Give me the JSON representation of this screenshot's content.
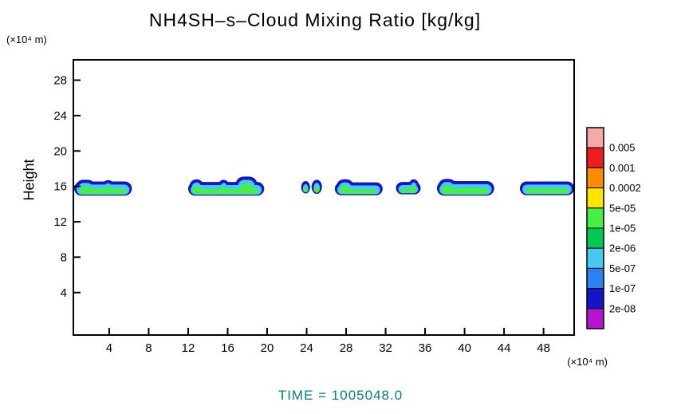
{
  "title": "NH4SH–s–Cloud Mixing Ratio [kg/kg]",
  "time_label": "TIME  =  1005048.0",
  "time_color": "#008080",
  "chart_data": {
    "type": "heatmap",
    "title": "NH4SH–s–Cloud Mixing Ratio [kg/kg]",
    "x_axis": {
      "units": "(×10⁴ m)",
      "ticks": [
        4,
        8,
        12,
        16,
        20,
        24,
        28,
        32,
        36,
        40,
        44,
        48
      ],
      "range": [
        0.37,
        51.1
      ]
    },
    "y_axis": {
      "label": "Height",
      "units": "(×10⁴ m)",
      "ticks": [
        4,
        8,
        12,
        16,
        20,
        24,
        28
      ],
      "range": [
        -0.8,
        30.3
      ]
    },
    "colorbar": {
      "labels": [
        "0.005",
        "0.001",
        "0.0002",
        "5e-05",
        "1e-05",
        "2e-06",
        "5e-07",
        "1e-07",
        "2e-08"
      ],
      "colors": [
        "#f7a8a8",
        "#ee1c1c",
        "#ff8c00",
        "#ffe400",
        "#46ef46",
        "#00c850",
        "#46c8f0",
        "#2882f0",
        "#1414c8",
        "#b414d2"
      ]
    },
    "clouds": {
      "description": "Cloud band near height 15-17 (x10^4 m), layered mixing-ratio contours",
      "layers": [
        {
          "name": "outer-low-ratio",
          "color": "#1414c8",
          "side": 0.0,
          "top": 0.0,
          "bottom": 0.0
        },
        {
          "name": "mid-ratio",
          "color": "#46c8f0",
          "side": 0.25,
          "top": 0.35,
          "bottom": 0.12
        },
        {
          "name": "core-high-ratio",
          "color": "#46ef46",
          "side": 0.6,
          "top": 0.8,
          "bottom": 0.18
        }
      ],
      "segments": [
        {
          "blobs": [
            [
              0.45,
              6.3,
              16.55,
              14.95
            ],
            [
              0.6,
              2.6,
              16.75,
              15.0
            ],
            [
              3.2,
              4.6,
              16.7,
              15.0
            ]
          ]
        },
        {
          "blobs": [
            [
              12.0,
              19.7,
              16.5,
              14.95
            ],
            [
              12.1,
              13.6,
              16.8,
              15.0
            ],
            [
              15.0,
              16.2,
              16.75,
              15.0
            ],
            [
              16.8,
              19.0,
              17.1,
              15.0
            ]
          ]
        },
        {
          "blobs": [
            [
              23.45,
              24.35,
              16.6,
              15.2
            ],
            [
              24.5,
              25.55,
              16.75,
              15.15
            ]
          ]
        },
        {
          "blobs": [
            [
              26.85,
              31.7,
              16.45,
              15.0
            ],
            [
              27.0,
              28.8,
              16.8,
              15.05
            ]
          ]
        },
        {
          "blobs": [
            [
              33.05,
              35.55,
              16.5,
              15.1
            ],
            [
              34.3,
              35.4,
              16.8,
              15.1
            ]
          ]
        },
        {
          "blobs": [
            [
              37.2,
              43.0,
              16.6,
              14.95
            ],
            [
              37.3,
              39.2,
              16.85,
              15.0
            ]
          ]
        },
        {
          "blobs": [
            [
              45.6,
              51.1,
              16.55,
              15.0
            ]
          ]
        }
      ]
    }
  }
}
